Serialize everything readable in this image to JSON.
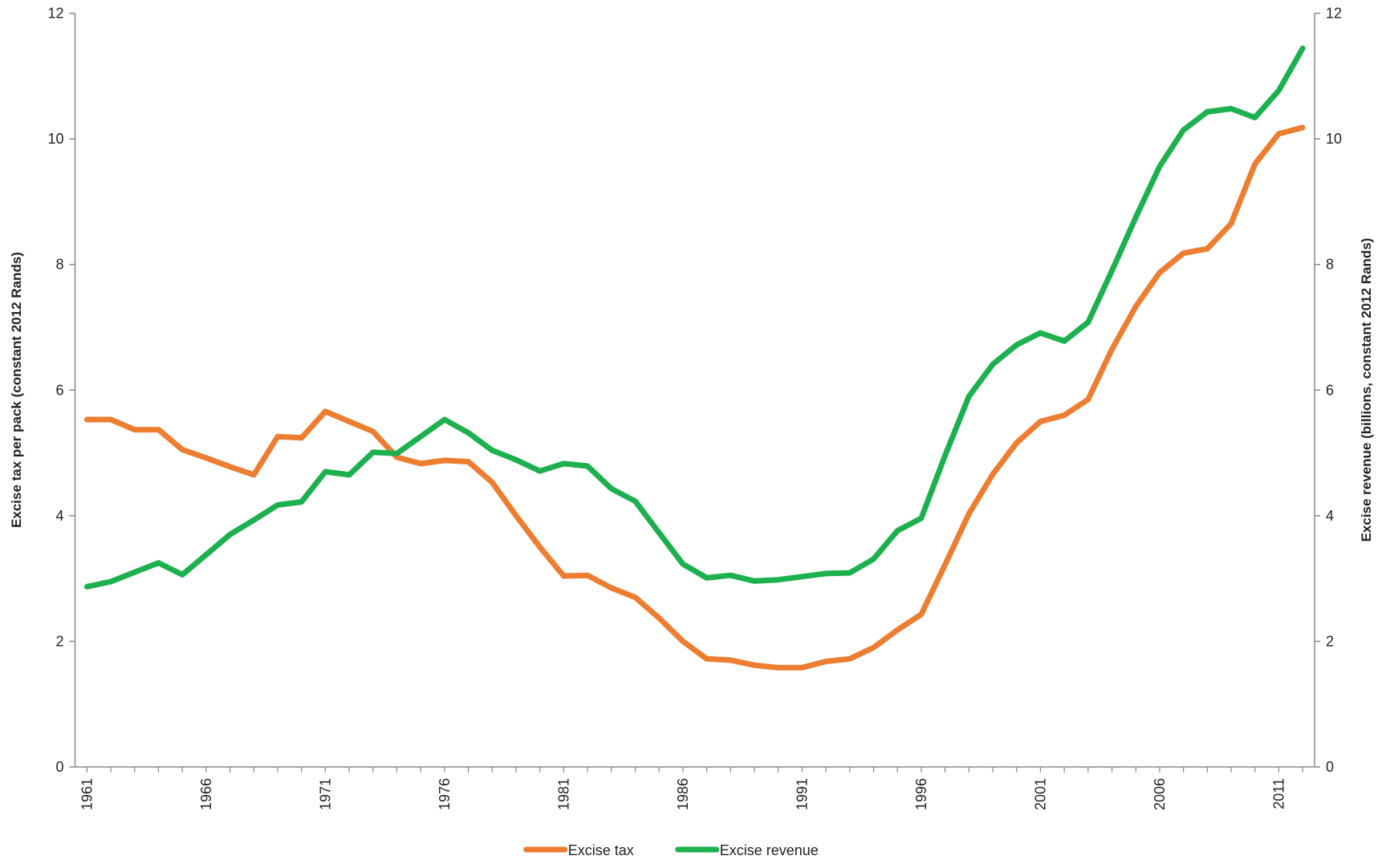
{
  "chart_data": {
    "type": "line",
    "y_label": "Excise tax per pack (constant 2012 Rands)",
    "y2_label": "Excise revenue (billions, constant 2012 Rands)",
    "categories": [
      "1961",
      null,
      null,
      null,
      null,
      "1966",
      null,
      null,
      null,
      null,
      "1971",
      null,
      null,
      null,
      null,
      "1976",
      null,
      null,
      null,
      null,
      "1981",
      null,
      null,
      null,
      null,
      "1986",
      null,
      null,
      null,
      null,
      "1991",
      null,
      null,
      null,
      null,
      "1996",
      null,
      null,
      null,
      null,
      "2001",
      null,
      null,
      null,
      null,
      "2006",
      null,
      null,
      null,
      null,
      "2011",
      null
    ],
    "series": [
      {
        "name": "Excise tax",
        "color": "#ed7d31",
        "values": [
          5.53,
          5.53,
          5.37,
          5.37,
          5.05,
          4.92,
          4.78,
          4.65,
          5.26,
          5.24,
          5.66,
          5.5,
          5.34,
          4.93,
          4.83,
          4.88,
          4.86,
          4.53,
          4.0,
          3.5,
          3.04,
          3.05,
          2.85,
          2.7,
          2.37,
          2.0,
          1.72,
          1.7,
          1.62,
          1.58,
          1.58,
          1.68,
          1.72,
          1.9,
          2.18,
          2.43,
          3.22,
          4.03,
          4.66,
          5.16,
          5.5,
          5.6,
          5.85,
          6.65,
          7.33,
          7.87,
          8.18,
          8.25,
          8.65,
          9.6,
          10.08,
          10.18
        ]
      },
      {
        "name": "Excise revenue",
        "color": "#1db04f",
        "axis": "y2",
        "values": [
          2.87,
          2.95,
          3.1,
          3.25,
          3.06,
          3.38,
          3.7,
          3.93,
          4.17,
          4.22,
          4.7,
          4.65,
          5.01,
          4.99,
          5.26,
          5.53,
          5.32,
          5.04,
          4.89,
          4.71,
          4.83,
          4.79,
          4.43,
          4.23,
          3.73,
          3.23,
          3.01,
          3.05,
          2.96,
          2.98,
          3.03,
          3.08,
          3.09,
          3.31,
          3.76,
          3.96,
          4.96,
          5.9,
          6.41,
          6.72,
          6.91,
          6.78,
          7.08,
          7.9,
          8.75,
          9.56,
          10.14,
          10.43,
          10.48,
          10.34,
          10.77,
          11.44
        ]
      }
    ],
    "ylim": [
      0,
      12
    ],
    "yticks": [
      0,
      2,
      4,
      6,
      8,
      10,
      12
    ],
    "y2lim": [
      0,
      12
    ],
    "y2ticks": [
      0,
      2,
      4,
      6,
      8,
      10,
      12
    ],
    "grid": false,
    "legend": "bottom"
  }
}
